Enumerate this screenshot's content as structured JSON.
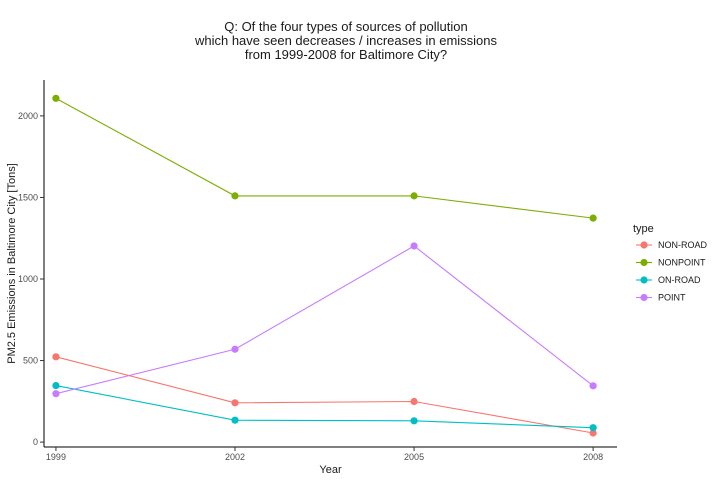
{
  "chart_data": {
    "type": "line",
    "title_lines": [
      "Q: Of the four types of sources of pollution",
      "which have seen decreases / increases in emissions",
      "from 1999-2008 for Baltimore City?"
    ],
    "xlabel": "Year",
    "ylabel": "PM2.5 Emissions in Baltimore City [Tons]",
    "x": [
      1999,
      2002,
      2005,
      2008
    ],
    "x_tick_labels": [
      "1999",
      "2002",
      "2005",
      "2008"
    ],
    "y_ticks": [
      0,
      500,
      1000,
      1500,
      2000
    ],
    "y_tick_labels": [
      "0",
      "500",
      "1000",
      "1500",
      "2000"
    ],
    "xlim": [
      1998.8,
      2008.4
    ],
    "ylim": [
      -30,
      2220
    ],
    "grid": false,
    "legend": {
      "title": "type",
      "position": "right"
    },
    "series": [
      {
        "name": "NON-ROAD",
        "color": "#F8766D",
        "values": [
          522.9,
          240.8,
          248.9,
          55.8
        ]
      },
      {
        "name": "NONPOINT",
        "color": "#7CAE00",
        "values": [
          2107.6,
          1509.5,
          1509.5,
          1373.2
        ]
      },
      {
        "name": "ON-ROAD",
        "color": "#00BFC4",
        "values": [
          346.8,
          134.3,
          130.4,
          88.3
        ]
      },
      {
        "name": "POINT",
        "color": "#C77CFF",
        "values": [
          296.8,
          569.3,
          1202.5,
          344.98
        ]
      }
    ]
  }
}
